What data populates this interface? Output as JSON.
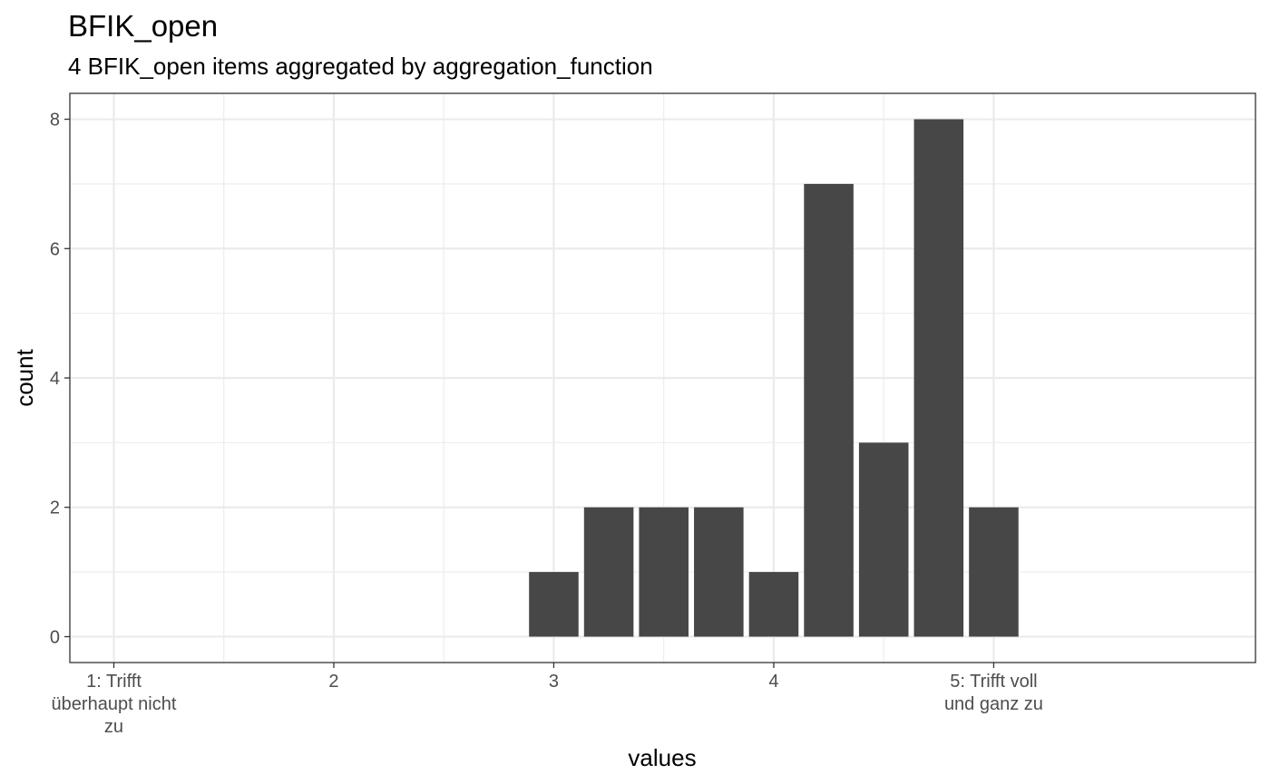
{
  "chart_data": {
    "type": "bar",
    "title": "BFIK_open",
    "subtitle": "4 BFIK_open items aggregated by aggregation_function",
    "xlabel": "values",
    "ylabel": "count",
    "x": [
      3,
      3.25,
      3.5,
      3.75,
      4,
      4.25,
      4.5,
      4.75,
      5
    ],
    "values": [
      1,
      2,
      2,
      2,
      1,
      7,
      3,
      8,
      2
    ],
    "bar_width": 0.225,
    "xlim": [
      0.8,
      6.19
    ],
    "ylim": [
      -0.4,
      8.4
    ],
    "x_ticks": [
      {
        "value": 1,
        "lines": [
          "1: Trifft",
          "überhaupt nicht",
          "zu"
        ]
      },
      {
        "value": 2,
        "lines": [
          "2"
        ]
      },
      {
        "value": 3,
        "lines": [
          "3"
        ]
      },
      {
        "value": 4,
        "lines": [
          "4"
        ]
      },
      {
        "value": 5,
        "lines": [
          "5: Trifft voll",
          "und ganz zu"
        ]
      }
    ],
    "y_ticks": [
      0,
      2,
      4,
      6,
      8
    ],
    "grid": true,
    "colors": {
      "bar": "#474747",
      "grid": "#ebebeb",
      "border": "#333333",
      "tick_text": "#4d4d4d"
    }
  }
}
